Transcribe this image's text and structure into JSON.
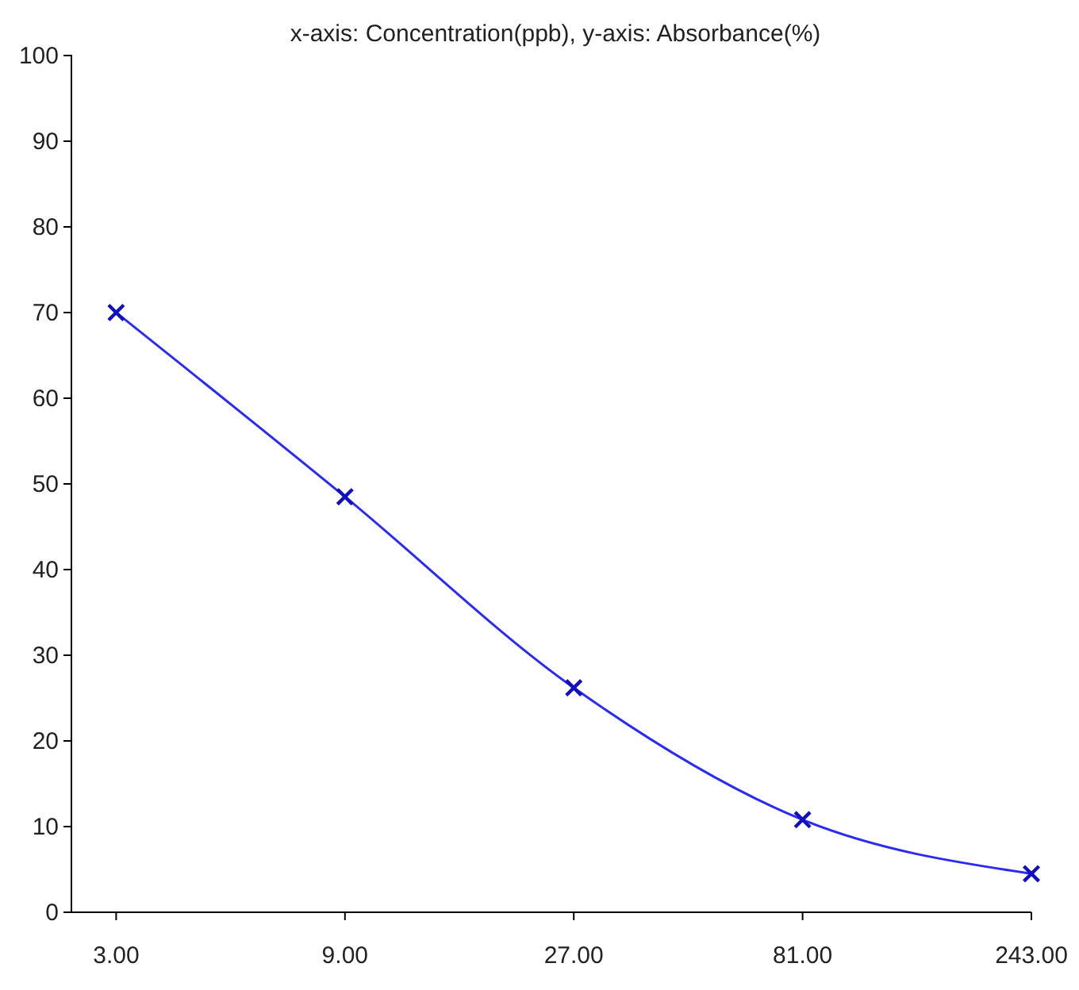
{
  "chart_data": {
    "type": "line",
    "title": "x-axis: Concentration(ppb), y-axis: Absorbance(%)",
    "x": [
      3,
      9,
      27,
      81,
      243
    ],
    "series": [
      {
        "color": "#2b2bf5",
        "values": [
          70,
          48.5,
          26.2,
          10.8,
          4.5
        ]
      }
    ],
    "log": "x",
    "xlim": [
      2.42,
      243
    ],
    "xticks": [
      {
        "value": 3,
        "label": "3.00"
      },
      {
        "value": 9,
        "label": "9.00"
      },
      {
        "value": 27,
        "label": "27.00"
      },
      {
        "value": 81,
        "label": "81.00"
      },
      {
        "value": 243,
        "label": "243.00"
      }
    ],
    "ylim": [
      0,
      100
    ],
    "yticks": [
      0,
      10,
      20,
      30,
      40,
      50,
      60,
      70,
      80,
      90,
      100
    ],
    "grid": false,
    "marker": "cross",
    "line_style": "solid"
  }
}
